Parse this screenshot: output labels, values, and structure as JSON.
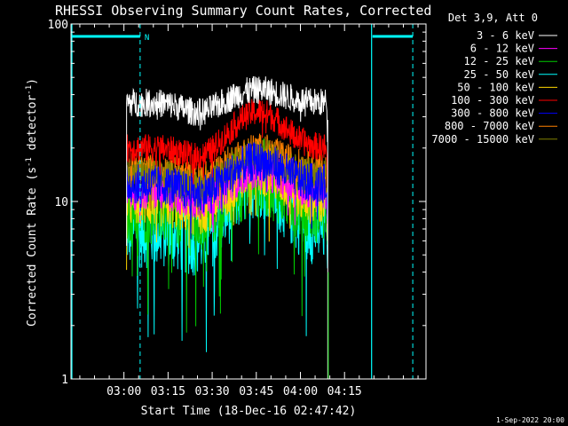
{
  "chart_data": {
    "type": "line",
    "title": "RHESSI Observing Summary Count Rates, Corrected",
    "xlabel": "Start Time (18-Dec-16 02:47:42)",
    "ylabel": "Corrected Count Rate (s",
    "ylabel_sup1": "-1",
    "ylabel_mid": " detector",
    "ylabel_sup2": "-1",
    "ylabel_end": ")",
    "y_scale": "log",
    "ylim": [
      1,
      100
    ],
    "yticks": [
      {
        "value": 1,
        "label": "1"
      },
      {
        "value": 10,
        "label": "10"
      },
      {
        "value": 100,
        "label": "100"
      }
    ],
    "xlim_minutes": [
      -5.7,
      115
    ],
    "xticks": [
      {
        "minute": 12.3,
        "label": "03:00"
      },
      {
        "minute": 27.3,
        "label": "03:15"
      },
      {
        "minute": 42.3,
        "label": "03:30"
      },
      {
        "minute": 57.3,
        "label": "03:45"
      },
      {
        "minute": 72.3,
        "label": "04:00"
      },
      {
        "minute": 87.3,
        "label": "04:15"
      }
    ],
    "legend_header": "Det 3,9, Att 0",
    "legend_position": "top-right",
    "data_start_minute": 13.2,
    "data_end_minute": 81.0,
    "series": [
      {
        "name": "3 - 6 keV",
        "color": "#ffffff",
        "base": 36,
        "noise": 0.05,
        "peak": 1.18,
        "min_factor": 0.85
      },
      {
        "name": "6 - 12 keV",
        "color": "#ff00ff",
        "base": 11.5,
        "noise": 0.07,
        "peak": 1.3,
        "min_factor": 0.75
      },
      {
        "name": "12 - 25 keV",
        "color": "#00cc00",
        "base": 9.5,
        "noise": 0.14,
        "peak": 1.45,
        "min_factor": 0.35
      },
      {
        "name": "25 - 50 keV",
        "color": "#00ffff",
        "base": 7.0,
        "noise": 0.14,
        "peak": 1.9,
        "min_factor": 0.3
      },
      {
        "name": "50 - 100 keV",
        "color": "#ffd700",
        "base": 10.0,
        "noise": 0.09,
        "peak": 1.5,
        "min_factor": 0.55
      },
      {
        "name": "100 - 300 keV",
        "color": "#ff0000",
        "base": 20.0,
        "noise": 0.05,
        "peak": 1.6,
        "min_factor": 0.8
      },
      {
        "name": "300 - 800 keV",
        "color": "#0000ff",
        "base": 12.5,
        "noise": 0.07,
        "peak": 1.35,
        "min_factor": 0.7
      },
      {
        "name": "800 - 7000 keV",
        "color": "#ff8000",
        "base": 15.0,
        "noise": 0.06,
        "peak": 1.3,
        "min_factor": 0.75
      },
      {
        "name": "7000 - 15000 keV",
        "color": "#808000",
        "base": 14.0,
        "noise": 0.06,
        "peak": 1.3,
        "min_factor": 0.75
      }
    ],
    "flare": {
      "center_minute": 58,
      "width_minute": 11
    },
    "attenuator_segments": [
      {
        "label": "N",
        "start_minute": -5.7,
        "end_minute": 17.8
      },
      {
        "label": "",
        "start_minute": 96.5,
        "end_minute": 110.5
      }
    ],
    "solid_markers_minutes": [
      -5.7,
      96.5
    ],
    "dashed_markers_minutes": [
      17.8,
      110.5
    ],
    "colors": {
      "background": "#000000",
      "axis": "#ffffff",
      "marker": "#00ffff"
    }
  },
  "footer": {
    "timestamp": "1-Sep-2022 20:00"
  }
}
